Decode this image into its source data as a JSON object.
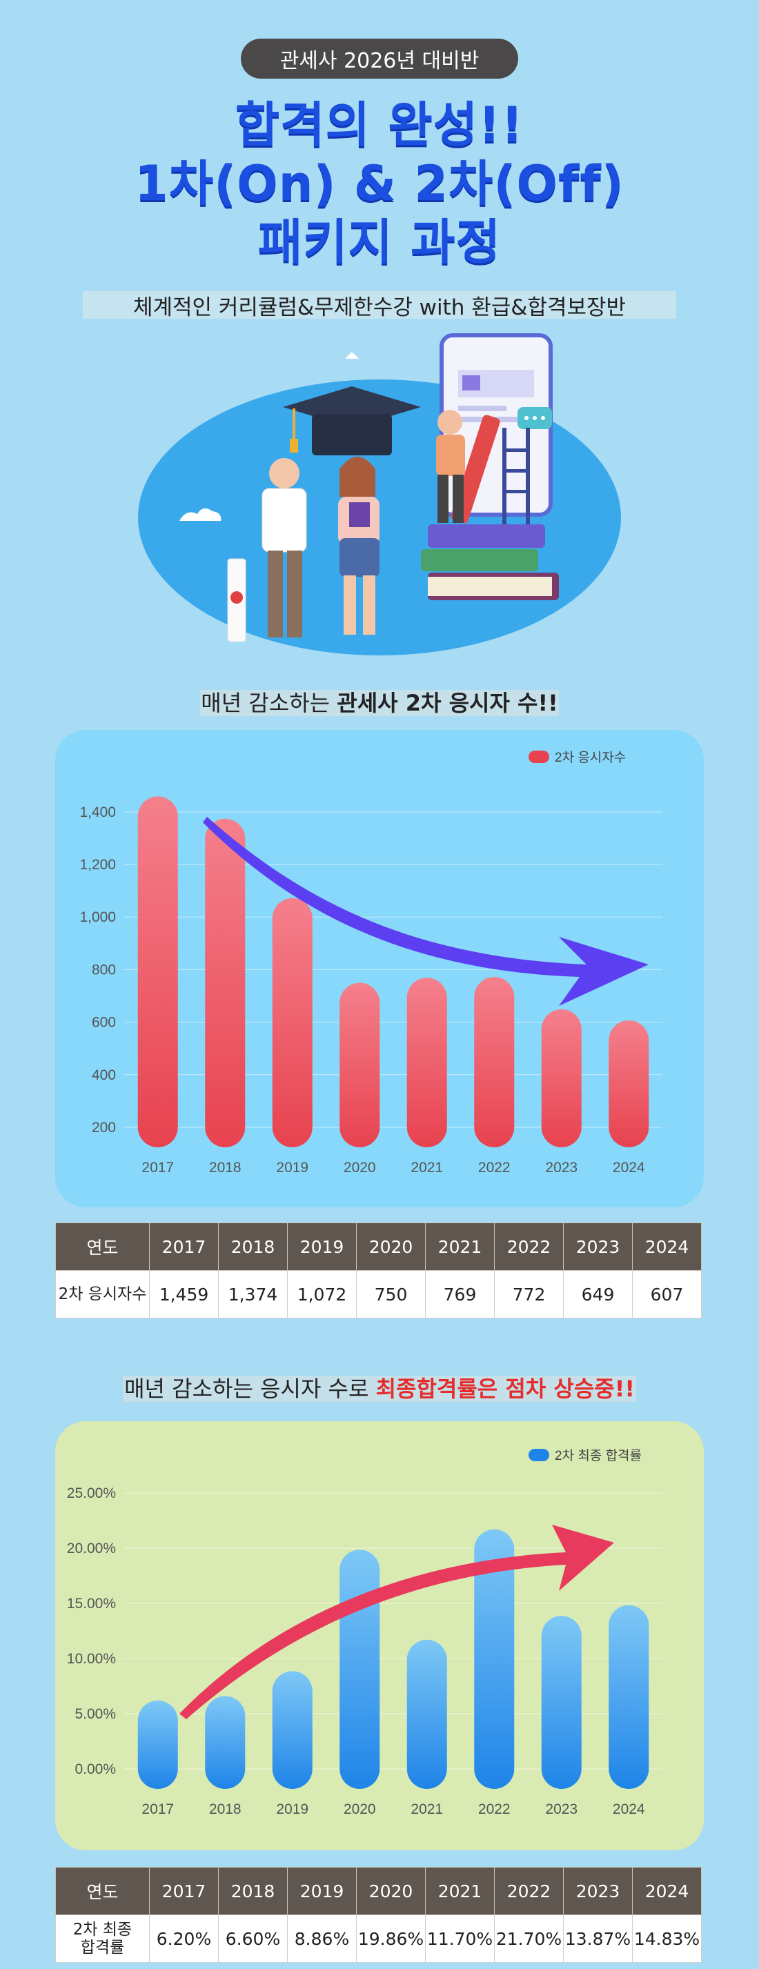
{
  "header": {
    "badge": "관세사 2026년 대비반",
    "headline_1": "합격의 완성!!",
    "headline_2": "1차(On) & 2차(Off)",
    "headline_3": "패키지 과정",
    "subtitle": "체계적인 커리큘럼&무제한수강 with 환급&합격보장반"
  },
  "section1": {
    "heading_prefix": "매년 감소하는 ",
    "heading_bold": "관세사 2차 응시자 수!!"
  },
  "section2": {
    "heading_prefix": "매년 감소하는 응시자 수로 ",
    "heading_red": "최종합격률은 점차 상승중!!"
  },
  "chart_data": [
    {
      "type": "bar",
      "categories": [
        "2017",
        "2018",
        "2019",
        "2020",
        "2021",
        "2022",
        "2023",
        "2024"
      ],
      "series": [
        {
          "name": "2차 응시자수",
          "values": [
            1459,
            1374,
            1072,
            750,
            769,
            772,
            649,
            607
          ]
        }
      ],
      "yticks": [
        "200",
        "400",
        "600",
        "800",
        "1,000",
        "1,200",
        "1,400"
      ],
      "ylim": [
        200,
        1460
      ],
      "legend": "top-right",
      "grid": true,
      "colors": {
        "bar_top": "#f4808c",
        "bar_bottom": "#e8424f",
        "arrow": "#5b3ff0"
      }
    },
    {
      "type": "bar",
      "categories": [
        "2017",
        "2018",
        "2019",
        "2020",
        "2021",
        "2022",
        "2023",
        "2024"
      ],
      "series": [
        {
          "name": "2차 최종 합격률",
          "values": [
            6.2,
            6.6,
            8.86,
            19.86,
            11.7,
            21.7,
            13.87,
            14.83
          ]
        }
      ],
      "yticks": [
        "0.00%",
        "5.00%",
        "10.00%",
        "15.00%",
        "20.00%",
        "25.00%"
      ],
      "ylim": [
        0,
        25
      ],
      "legend": "top-right",
      "grid": true,
      "colors": {
        "bar_top": "#7ec8f6",
        "bar_bottom": "#1f84e8",
        "arrow": "#e83a5c"
      }
    }
  ],
  "table1": {
    "header_label": "연도",
    "row_label": "2차 응시자수",
    "years": [
      "2017",
      "2018",
      "2019",
      "2020",
      "2021",
      "2022",
      "2023",
      "2024"
    ],
    "values": [
      "1,459",
      "1,374",
      "1,072",
      "750",
      "769",
      "772",
      "649",
      "607"
    ]
  },
  "table2": {
    "header_label": "연도",
    "row_label_1": "2차 최종",
    "row_label_2": "합격률",
    "years": [
      "2017",
      "2018",
      "2019",
      "2020",
      "2021",
      "2022",
      "2023",
      "2024"
    ],
    "values": [
      "6.20%",
      "6.60%",
      "8.86%",
      "19.86%",
      "11.70%",
      "21.70%",
      "13.87%",
      "14.83%"
    ]
  }
}
